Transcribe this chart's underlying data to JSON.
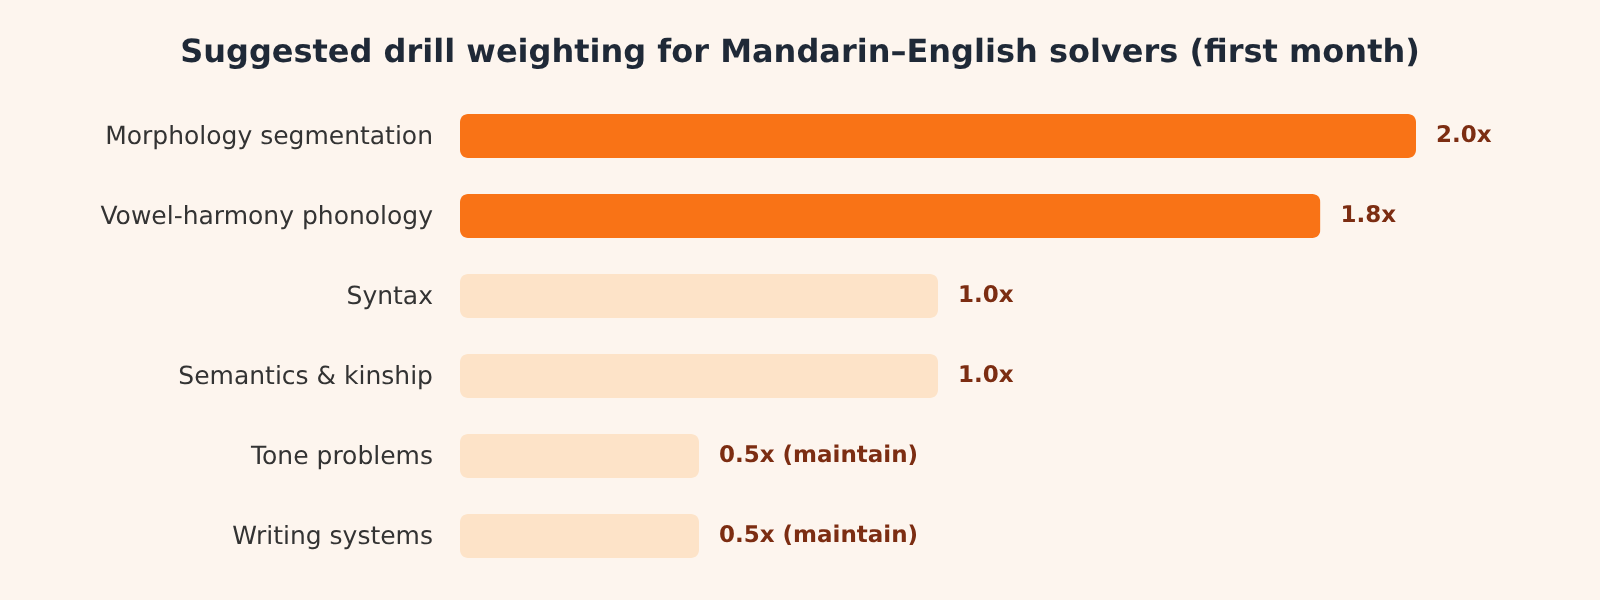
{
  "chart_data": {
    "type": "bar",
    "orientation": "horizontal",
    "title": "Suggested drill weighting for Mandarin–English solvers (first month)",
    "categories": [
      "Morphology segmentation",
      "Vowel-harmony phonology",
      "Syntax",
      "Semantics & kinship",
      "Tone problems",
      "Writing systems"
    ],
    "values": [
      2.0,
      1.8,
      1.0,
      1.0,
      0.5,
      0.5
    ],
    "colors": [
      "#f97316",
      "#f97316",
      "#fde3c8",
      "#fde3c8",
      "#fde3c8",
      "#fde3c8"
    ],
    "value_labels": [
      "2.0x",
      "1.8x",
      "1.0x",
      "1.0x",
      "0.5x (maintain)",
      "0.5x (maintain)"
    ]
  }
}
